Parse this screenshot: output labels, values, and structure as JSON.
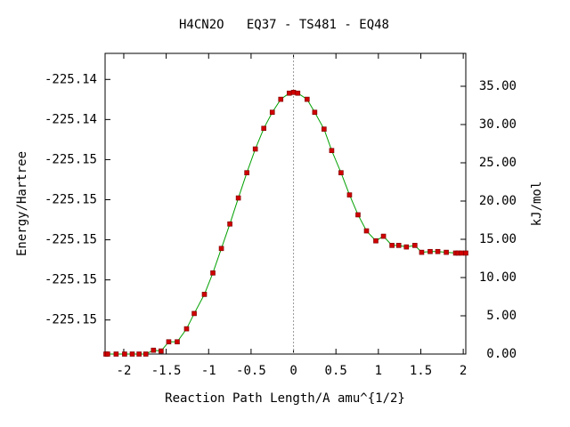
{
  "chart_data": {
    "type": "line",
    "title": "H4CN2O   EQ37 - TS481 - EQ48",
    "xlabel": "Reaction Path Length/A amu^{1/2}",
    "ylabel": "Energy/Hartree",
    "y2label": "kJ/mol",
    "x": [
      -2.21,
      -2.19,
      -2.09,
      -1.99,
      -1.9,
      -1.82,
      -1.74,
      -1.65,
      -1.56,
      -1.47,
      -1.37,
      -1.26,
      -1.17,
      -1.05,
      -0.95,
      -0.85,
      -0.75,
      -0.65,
      -0.55,
      -0.45,
      -0.35,
      -0.25,
      -0.15,
      -0.05,
      0,
      0.05,
      0.16,
      0.25,
      0.36,
      0.45,
      0.56,
      0.66,
      0.76,
      0.86,
      0.97,
      1.06,
      1.16,
      1.24,
      1.33,
      1.43,
      1.51,
      1.61,
      1.7,
      1.8,
      1.91,
      1.94,
      1.98,
      2.03
    ],
    "series": [
      {
        "color": "#00a000",
        "marker_color": "#d00000",
        "axis": "y2",
        "values": [
          0,
          0,
          0,
          0,
          0,
          0,
          0,
          0.5,
          0.4,
          1.6,
          1.6,
          3.3,
          5.3,
          7.8,
          10.6,
          13.8,
          17.0,
          20.4,
          23.7,
          26.8,
          29.5,
          31.6,
          33.3,
          34.1,
          34.2,
          34.1,
          33.3,
          31.6,
          29.4,
          26.6,
          23.7,
          20.8,
          18.2,
          16.1,
          14.8,
          15.4,
          14.2,
          14.2,
          14.0,
          14.2,
          13.3,
          13.4,
          13.4,
          13.3,
          13.2,
          13.2,
          13.2,
          13.2
        ]
      }
    ],
    "xlim": [
      -2.22,
      2.03
    ],
    "xticks": [
      -2,
      -1.5,
      -1,
      -0.5,
      0,
      0.5,
      1,
      1.5,
      2
    ],
    "ylim": [
      -225.1557,
      -225.1407
    ],
    "yticks": [
      {
        "value": -225.154,
        "label": "-225.15"
      },
      {
        "value": -225.152,
        "label": "-225.15"
      },
      {
        "value": -225.15,
        "label": "-225.15"
      },
      {
        "value": -225.148,
        "label": "-225.15"
      },
      {
        "value": -225.146,
        "label": "-225.15"
      },
      {
        "value": -225.144,
        "label": "-225.14"
      },
      {
        "value": -225.142,
        "label": "-225.14"
      }
    ],
    "y2lim": [
      0,
      39.3
    ],
    "y2ticks": [
      {
        "value": 0,
        "label": "0.00"
      },
      {
        "value": 5,
        "label": "5.00"
      },
      {
        "value": 10,
        "label": "10.00"
      },
      {
        "value": 15,
        "label": "15.00"
      },
      {
        "value": 20,
        "label": "20.00"
      },
      {
        "value": 25,
        "label": "25.00"
      },
      {
        "value": 30,
        "label": "30.00"
      },
      {
        "value": 35,
        "label": "35.00"
      }
    ],
    "vline_x": 0
  }
}
